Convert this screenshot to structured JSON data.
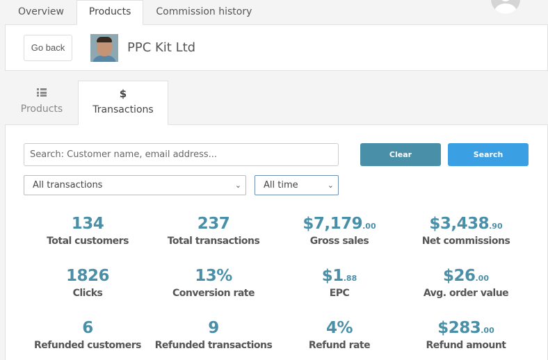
{
  "top_tabs": [
    "Overview",
    "Products",
    "Commission history"
  ],
  "header": {
    "back_label": "Go back",
    "company_name": "PPC Kit Ltd"
  },
  "sub_tabs": {
    "products": {
      "icon": "list-grid-icon",
      "label": "Products"
    },
    "transactions": {
      "icon": "$",
      "label": "Transactions"
    }
  },
  "search": {
    "placeholder": "Search: Customer name, email address...",
    "clear_label": "Clear",
    "search_label": "Search"
  },
  "filters": {
    "type": "All transactions",
    "time": "All time"
  },
  "colors": {
    "accent": "#4a8fa8",
    "search_button": "#3aa0e3"
  },
  "stats": [
    {
      "value": "134",
      "cents": "",
      "label": "Total customers"
    },
    {
      "value": "237",
      "cents": "",
      "label": "Total transactions"
    },
    {
      "value": "$7,179",
      "cents": ".00",
      "label": "Gross sales"
    },
    {
      "value": "$3,438",
      "cents": ".90",
      "label": "Net commissions"
    },
    {
      "value": "1826",
      "cents": "",
      "label": "Clicks"
    },
    {
      "value": "13%",
      "cents": "",
      "label": "Conversion rate"
    },
    {
      "value": "$1",
      "cents": ".88",
      "label": "EPC"
    },
    {
      "value": "$26",
      "cents": ".00",
      "label": "Avg. order value"
    },
    {
      "value": "6",
      "cents": "",
      "label": "Refunded customers"
    },
    {
      "value": "9",
      "cents": "",
      "label": "Refunded transactions"
    },
    {
      "value": "4%",
      "cents": "",
      "label": "Refund rate"
    },
    {
      "value": "$283",
      "cents": ".00",
      "label": "Refund amount"
    }
  ]
}
